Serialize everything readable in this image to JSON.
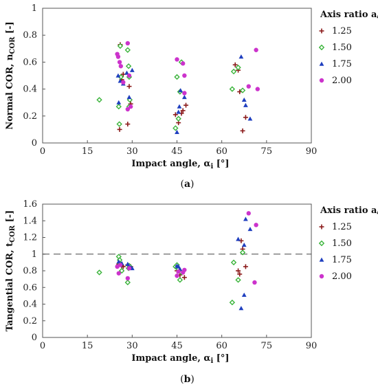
{
  "chart_data": [
    {
      "type": "scatter",
      "panel_caption_prefix": "(",
      "panel_caption_letter": "a",
      "panel_caption_suffix": ")",
      "xlabel": "Impact angle, α",
      "xlabel_sub": "i",
      "xlabel_unit": " [°]",
      "ylabel": "Normal COR, n",
      "ylabel_sub": "COR",
      "ylabel_unit": " [-]",
      "xlim": [
        0,
        90
      ],
      "ylim": [
        0,
        1
      ],
      "xticks": [
        "0",
        "15",
        "30",
        "45",
        "60",
        "75",
        "90"
      ],
      "yticks": [
        "0",
        "0.2",
        "0.4",
        "0.6",
        "0.8",
        "1"
      ],
      "legend_title": "Axis ratio a/b",
      "legend_position": "right",
      "series": [
        {
          "name": "1.25",
          "marker": "plus",
          "color": "#8b1a1a",
          "points": [
            [
              25.8,
              0.1
            ],
            [
              26.0,
              0.73
            ],
            [
              26.5,
              0.47
            ],
            [
              27.0,
              0.51
            ],
            [
              28.5,
              0.14
            ],
            [
              29.0,
              0.42
            ],
            [
              29.5,
              0.29
            ],
            [
              44.5,
              0.21
            ],
            [
              45.5,
              0.15
            ],
            [
              46.5,
              0.22
            ],
            [
              47.0,
              0.24
            ],
            [
              48.0,
              0.28
            ],
            [
              65.5,
              0.54
            ],
            [
              66.0,
              0.38
            ],
            [
              67.0,
              0.09
            ],
            [
              68.0,
              0.19
            ],
            [
              64.5,
              0.58
            ]
          ]
        },
        {
          "name": "1.50",
          "marker": "diamond",
          "color": "#3ab43a",
          "points": [
            [
              19.0,
              0.32
            ],
            [
              25.7,
              0.14
            ],
            [
              26.0,
              0.72
            ],
            [
              26.2,
              0.49
            ],
            [
              25.5,
              0.27
            ],
            [
              28.5,
              0.69
            ],
            [
              28.8,
              0.57
            ],
            [
              29.0,
              0.49
            ],
            [
              29.2,
              0.32
            ],
            [
              29.0,
              0.27
            ],
            [
              44.5,
              0.11
            ],
            [
              45.0,
              0.49
            ],
            [
              45.5,
              0.18
            ],
            [
              46.0,
              0.38
            ],
            [
              46.5,
              0.6
            ],
            [
              63.5,
              0.4
            ],
            [
              64.0,
              0.53
            ],
            [
              65.5,
              0.56
            ],
            [
              67.0,
              0.39
            ]
          ]
        },
        {
          "name": "1.75",
          "marker": "triangle",
          "color": "#1f3fbf",
          "points": [
            [
              25.5,
              0.3
            ],
            [
              25.3,
              0.5
            ],
            [
              26.0,
              0.46
            ],
            [
              27.0,
              0.44
            ],
            [
              28.2,
              0.52
            ],
            [
              29.0,
              0.34
            ],
            [
              30.0,
              0.54
            ],
            [
              45.0,
              0.08
            ],
            [
              45.5,
              0.23
            ],
            [
              45.8,
              0.27
            ],
            [
              46.2,
              0.39
            ],
            [
              47.5,
              0.34
            ],
            [
              66.5,
              0.64
            ],
            [
              67.5,
              0.32
            ],
            [
              68.0,
              0.28
            ],
            [
              69.5,
              0.18
            ]
          ]
        },
        {
          "name": "2.00",
          "marker": "circle",
          "color": "#cc33cc",
          "points": [
            [
              25.0,
              0.66
            ],
            [
              25.3,
              0.64
            ],
            [
              25.8,
              0.6
            ],
            [
              26.2,
              0.57
            ],
            [
              27.0,
              0.45
            ],
            [
              28.5,
              0.74
            ],
            [
              29.0,
              0.5
            ],
            [
              29.5,
              0.27
            ],
            [
              28.5,
              0.25
            ],
            [
              45.0,
              0.62
            ],
            [
              47.0,
              0.59
            ],
            [
              47.5,
              0.5
            ],
            [
              47.5,
              0.37
            ],
            [
              71.5,
              0.69
            ],
            [
              72.0,
              0.4
            ],
            [
              69.0,
              0.42
            ]
          ]
        }
      ]
    },
    {
      "type": "scatter",
      "panel_caption_prefix": "(",
      "panel_caption_letter": "b",
      "panel_caption_suffix": ")",
      "xlabel": "Impact angle, α",
      "xlabel_sub": "i",
      "xlabel_unit": " [°]",
      "ylabel": "Tangential COR, t",
      "ylabel_sub": "COR",
      "ylabel_unit": " [-]",
      "xlim": [
        0,
        90
      ],
      "ylim": [
        0,
        1.6
      ],
      "xticks": [
        "0",
        "15",
        "30",
        "45",
        "60",
        "75",
        "90"
      ],
      "yticks": [
        "0",
        "0.2",
        "0.4",
        "0.6",
        "0.8",
        "1",
        "1.2",
        "1.4",
        "1.6"
      ],
      "reference_line": 1,
      "legend_title": "Axis ratio a/b",
      "legend_position": "right",
      "series": [
        {
          "name": "1.25",
          "marker": "plus",
          "color": "#8b1a1a",
          "points": [
            [
              25.5,
              0.88
            ],
            [
              26.0,
              0.9
            ],
            [
              26.5,
              0.86
            ],
            [
              27.0,
              0.85
            ],
            [
              28.5,
              0.87
            ],
            [
              29.0,
              0.84
            ],
            [
              29.5,
              0.85
            ],
            [
              45.0,
              0.8
            ],
            [
              45.5,
              0.82
            ],
            [
              46.0,
              0.75
            ],
            [
              46.5,
              0.78
            ],
            [
              47.5,
              0.72
            ],
            [
              65.5,
              0.8
            ],
            [
              66.0,
              0.76
            ],
            [
              66.5,
              1.16
            ],
            [
              68.0,
              0.85
            ],
            [
              67.0,
              1.06
            ]
          ]
        },
        {
          "name": "1.50",
          "marker": "diamond",
          "color": "#3ab43a",
          "points": [
            [
              19.0,
              0.78
            ],
            [
              25.5,
              0.97
            ],
            [
              25.8,
              0.93
            ],
            [
              26.0,
              0.88
            ],
            [
              26.5,
              0.8
            ],
            [
              28.5,
              0.66
            ],
            [
              28.8,
              0.83
            ],
            [
              29.0,
              0.86
            ],
            [
              44.5,
              0.85
            ],
            [
              45.0,
              0.87
            ],
            [
              45.5,
              0.82
            ],
            [
              46.0,
              0.69
            ],
            [
              46.5,
              0.78
            ],
            [
              63.5,
              0.42
            ],
            [
              64.0,
              0.9
            ],
            [
              65.5,
              0.69
            ],
            [
              67.0,
              1.02
            ]
          ]
        },
        {
          "name": "1.75",
          "marker": "triangle",
          "color": "#1f3fbf",
          "points": [
            [
              25.5,
              0.91
            ],
            [
              26.0,
              0.87
            ],
            [
              26.5,
              0.89
            ],
            [
              28.5,
              0.88
            ],
            [
              29.0,
              0.85
            ],
            [
              29.5,
              0.84
            ],
            [
              30.0,
              0.83
            ],
            [
              45.0,
              0.86
            ],
            [
              45.5,
              0.85
            ],
            [
              46.0,
              0.82
            ],
            [
              65.5,
              1.18
            ],
            [
              66.5,
              0.35
            ],
            [
              67.5,
              0.51
            ],
            [
              67.5,
              1.11
            ],
            [
              68.0,
              1.42
            ],
            [
              69.5,
              1.3
            ]
          ]
        },
        {
          "name": "2.00",
          "marker": "circle",
          "color": "#cc33cc",
          "points": [
            [
              25.0,
              0.85
            ],
            [
              25.5,
              0.77
            ],
            [
              26.0,
              0.87
            ],
            [
              28.5,
              0.71
            ],
            [
              29.0,
              0.83
            ],
            [
              45.0,
              0.74
            ],
            [
              45.5,
              0.79
            ],
            [
              47.0,
              0.78
            ],
            [
              47.5,
              0.81
            ],
            [
              69.0,
              1.49
            ],
            [
              71.5,
              1.35
            ],
            [
              71.0,
              0.66
            ]
          ]
        }
      ]
    }
  ]
}
